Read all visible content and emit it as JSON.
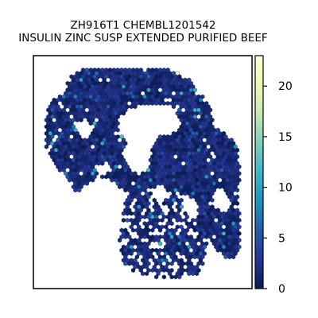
{
  "chart_data": {
    "type": "heatmap",
    "subtype": "hexbin spatial map",
    "title_line1": "ZH916T1 CHEMBL1201542",
    "title_line2": "INSULIN ZINC SUSP EXTENDED PURIFIED BEEF",
    "xlabel": "",
    "ylabel": "",
    "axis_ticks_visible": false,
    "grid": false,
    "colormap": "YlGnBu",
    "colorbar": {
      "min": 0,
      "max": 23,
      "ticks": [
        0,
        5,
        10,
        15,
        20
      ],
      "tick_labels": [
        "0",
        "5",
        "10",
        "15",
        "20"
      ],
      "position": "right"
    },
    "typical_value_range": [
      0,
      5
    ],
    "max_observed_value": 21,
    "colors": {
      "background": "#ffffff",
      "low": "#081d58",
      "high": "#ffffd9"
    }
  }
}
